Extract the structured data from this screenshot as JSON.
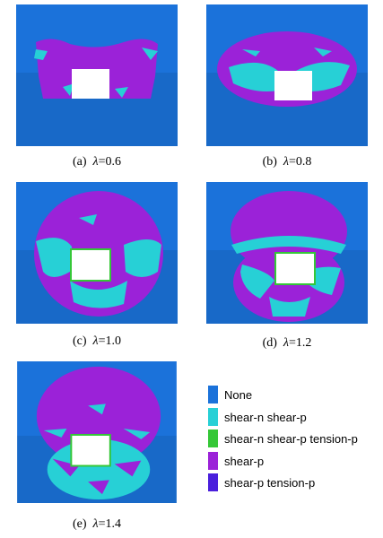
{
  "panels": [
    {
      "label": "(a)",
      "symbol": "λ",
      "value": "=0.6"
    },
    {
      "label": "(b)",
      "symbol": "λ",
      "value": "=0.8"
    },
    {
      "label": "(c)",
      "symbol": "λ",
      "value": "=1.0"
    },
    {
      "label": "(d)",
      "symbol": "λ",
      "value": "=1.2"
    },
    {
      "label": "(e)",
      "symbol": "λ",
      "value": "=1.4"
    }
  ],
  "legend": [
    {
      "label": "None",
      "color": "#1b72da"
    },
    {
      "label": "shear-n shear-p",
      "color": "#27d0d6"
    },
    {
      "label": "shear-n shear-p tension-p",
      "color": "#35c737"
    },
    {
      "label": "shear-p",
      "color": "#9b22d8"
    },
    {
      "label": "shear-p tension-p",
      "color": "#4a1fdc"
    }
  ]
}
